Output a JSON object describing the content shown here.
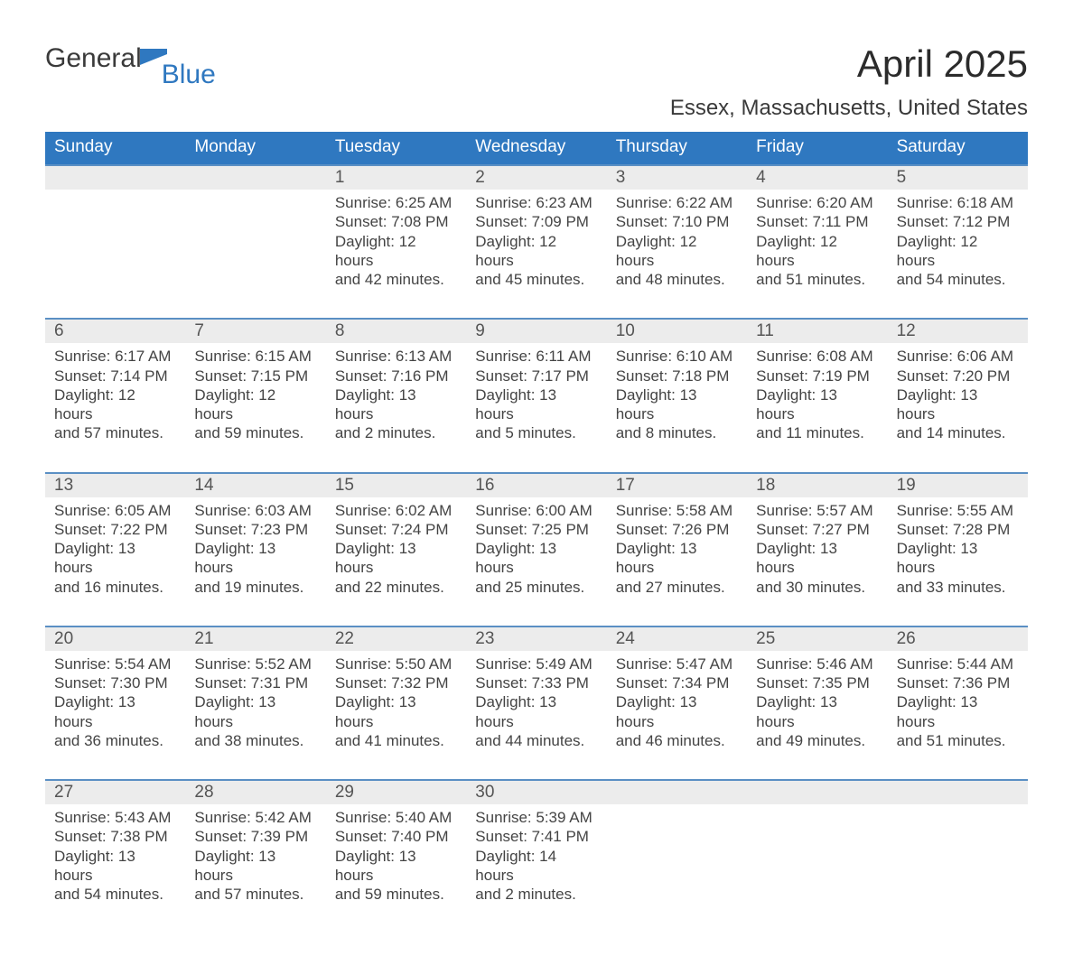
{
  "brand": {
    "word1": "General",
    "word2": "Blue"
  },
  "title": "April 2025",
  "subtitle": "Essex, Massachusetts, United States",
  "colors": {
    "brand_blue": "#2f78c0",
    "header_text": "#ffffff",
    "daynum_bg": "#ececec",
    "week_border": "#5a8fc4",
    "body_text": "#444444"
  },
  "days_of_week": [
    "Sunday",
    "Monday",
    "Tuesday",
    "Wednesday",
    "Thursday",
    "Friday",
    "Saturday"
  ],
  "weeks": [
    [
      {
        "num": "",
        "lines": []
      },
      {
        "num": "",
        "lines": []
      },
      {
        "num": "1",
        "lines": [
          "Sunrise: 6:25 AM",
          "Sunset: 7:08 PM",
          "Daylight: 12 hours",
          "and 42 minutes."
        ]
      },
      {
        "num": "2",
        "lines": [
          "Sunrise: 6:23 AM",
          "Sunset: 7:09 PM",
          "Daylight: 12 hours",
          "and 45 minutes."
        ]
      },
      {
        "num": "3",
        "lines": [
          "Sunrise: 6:22 AM",
          "Sunset: 7:10 PM",
          "Daylight: 12 hours",
          "and 48 minutes."
        ]
      },
      {
        "num": "4",
        "lines": [
          "Sunrise: 6:20 AM",
          "Sunset: 7:11 PM",
          "Daylight: 12 hours",
          "and 51 minutes."
        ]
      },
      {
        "num": "5",
        "lines": [
          "Sunrise: 6:18 AM",
          "Sunset: 7:12 PM",
          "Daylight: 12 hours",
          "and 54 minutes."
        ]
      }
    ],
    [
      {
        "num": "6",
        "lines": [
          "Sunrise: 6:17 AM",
          "Sunset: 7:14 PM",
          "Daylight: 12 hours",
          "and 57 minutes."
        ]
      },
      {
        "num": "7",
        "lines": [
          "Sunrise: 6:15 AM",
          "Sunset: 7:15 PM",
          "Daylight: 12 hours",
          "and 59 minutes."
        ]
      },
      {
        "num": "8",
        "lines": [
          "Sunrise: 6:13 AM",
          "Sunset: 7:16 PM",
          "Daylight: 13 hours",
          "and 2 minutes."
        ]
      },
      {
        "num": "9",
        "lines": [
          "Sunrise: 6:11 AM",
          "Sunset: 7:17 PM",
          "Daylight: 13 hours",
          "and 5 minutes."
        ]
      },
      {
        "num": "10",
        "lines": [
          "Sunrise: 6:10 AM",
          "Sunset: 7:18 PM",
          "Daylight: 13 hours",
          "and 8 minutes."
        ]
      },
      {
        "num": "11",
        "lines": [
          "Sunrise: 6:08 AM",
          "Sunset: 7:19 PM",
          "Daylight: 13 hours",
          "and 11 minutes."
        ]
      },
      {
        "num": "12",
        "lines": [
          "Sunrise: 6:06 AM",
          "Sunset: 7:20 PM",
          "Daylight: 13 hours",
          "and 14 minutes."
        ]
      }
    ],
    [
      {
        "num": "13",
        "lines": [
          "Sunrise: 6:05 AM",
          "Sunset: 7:22 PM",
          "Daylight: 13 hours",
          "and 16 minutes."
        ]
      },
      {
        "num": "14",
        "lines": [
          "Sunrise: 6:03 AM",
          "Sunset: 7:23 PM",
          "Daylight: 13 hours",
          "and 19 minutes."
        ]
      },
      {
        "num": "15",
        "lines": [
          "Sunrise: 6:02 AM",
          "Sunset: 7:24 PM",
          "Daylight: 13 hours",
          "and 22 minutes."
        ]
      },
      {
        "num": "16",
        "lines": [
          "Sunrise: 6:00 AM",
          "Sunset: 7:25 PM",
          "Daylight: 13 hours",
          "and 25 minutes."
        ]
      },
      {
        "num": "17",
        "lines": [
          "Sunrise: 5:58 AM",
          "Sunset: 7:26 PM",
          "Daylight: 13 hours",
          "and 27 minutes."
        ]
      },
      {
        "num": "18",
        "lines": [
          "Sunrise: 5:57 AM",
          "Sunset: 7:27 PM",
          "Daylight: 13 hours",
          "and 30 minutes."
        ]
      },
      {
        "num": "19",
        "lines": [
          "Sunrise: 5:55 AM",
          "Sunset: 7:28 PM",
          "Daylight: 13 hours",
          "and 33 minutes."
        ]
      }
    ],
    [
      {
        "num": "20",
        "lines": [
          "Sunrise: 5:54 AM",
          "Sunset: 7:30 PM",
          "Daylight: 13 hours",
          "and 36 minutes."
        ]
      },
      {
        "num": "21",
        "lines": [
          "Sunrise: 5:52 AM",
          "Sunset: 7:31 PM",
          "Daylight: 13 hours",
          "and 38 minutes."
        ]
      },
      {
        "num": "22",
        "lines": [
          "Sunrise: 5:50 AM",
          "Sunset: 7:32 PM",
          "Daylight: 13 hours",
          "and 41 minutes."
        ]
      },
      {
        "num": "23",
        "lines": [
          "Sunrise: 5:49 AM",
          "Sunset: 7:33 PM",
          "Daylight: 13 hours",
          "and 44 minutes."
        ]
      },
      {
        "num": "24",
        "lines": [
          "Sunrise: 5:47 AM",
          "Sunset: 7:34 PM",
          "Daylight: 13 hours",
          "and 46 minutes."
        ]
      },
      {
        "num": "25",
        "lines": [
          "Sunrise: 5:46 AM",
          "Sunset: 7:35 PM",
          "Daylight: 13 hours",
          "and 49 minutes."
        ]
      },
      {
        "num": "26",
        "lines": [
          "Sunrise: 5:44 AM",
          "Sunset: 7:36 PM",
          "Daylight: 13 hours",
          "and 51 minutes."
        ]
      }
    ],
    [
      {
        "num": "27",
        "lines": [
          "Sunrise: 5:43 AM",
          "Sunset: 7:38 PM",
          "Daylight: 13 hours",
          "and 54 minutes."
        ]
      },
      {
        "num": "28",
        "lines": [
          "Sunrise: 5:42 AM",
          "Sunset: 7:39 PM",
          "Daylight: 13 hours",
          "and 57 minutes."
        ]
      },
      {
        "num": "29",
        "lines": [
          "Sunrise: 5:40 AM",
          "Sunset: 7:40 PM",
          "Daylight: 13 hours",
          "and 59 minutes."
        ]
      },
      {
        "num": "30",
        "lines": [
          "Sunrise: 5:39 AM",
          "Sunset: 7:41 PM",
          "Daylight: 14 hours",
          "and 2 minutes."
        ]
      },
      {
        "num": "",
        "lines": []
      },
      {
        "num": "",
        "lines": []
      },
      {
        "num": "",
        "lines": []
      }
    ]
  ]
}
